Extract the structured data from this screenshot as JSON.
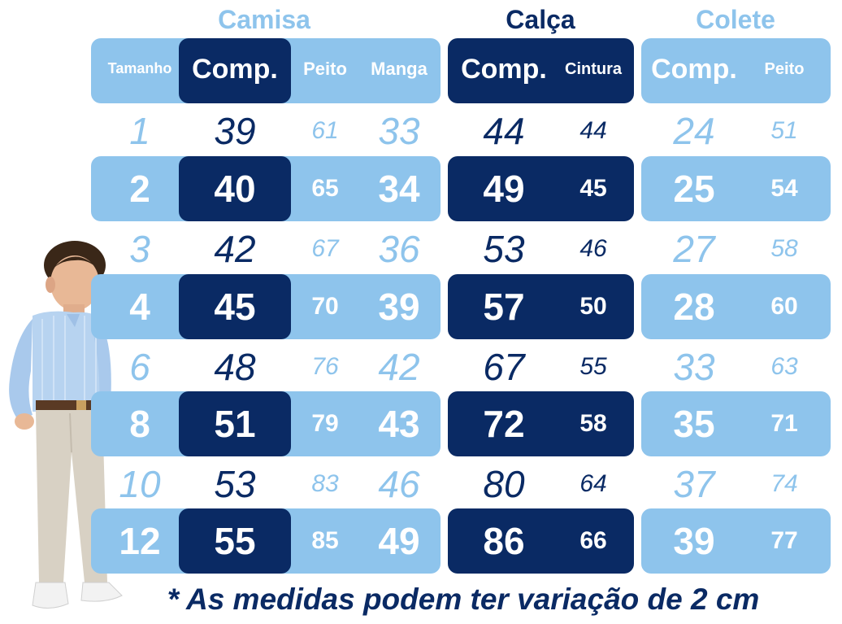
{
  "groups": {
    "camisa": "Camisa",
    "calca": "Calça",
    "colete": "Colete"
  },
  "headers": {
    "tamanho": "Tamanho",
    "camisa_comp": "Comp.",
    "camisa_peito": "Peito",
    "camisa_manga": "Manga",
    "calca_comp": "Comp.",
    "calca_cintura": "Cintura",
    "colete_comp": "Comp.",
    "colete_peito": "Peito"
  },
  "rows": [
    {
      "tamanho": "1",
      "camisa_comp": "39",
      "camisa_peito": "61",
      "camisa_manga": "33",
      "calca_comp": "44",
      "calca_cintura": "44",
      "colete_comp": "24",
      "colete_peito": "51"
    },
    {
      "tamanho": "2",
      "camisa_comp": "40",
      "camisa_peito": "65",
      "camisa_manga": "34",
      "calca_comp": "49",
      "calca_cintura": "45",
      "colete_comp": "25",
      "colete_peito": "54"
    },
    {
      "tamanho": "3",
      "camisa_comp": "42",
      "camisa_peito": "67",
      "camisa_manga": "36",
      "calca_comp": "53",
      "calca_cintura": "46",
      "colete_comp": "27",
      "colete_peito": "58"
    },
    {
      "tamanho": "4",
      "camisa_comp": "45",
      "camisa_peito": "70",
      "camisa_manga": "39",
      "calca_comp": "57",
      "calca_cintura": "50",
      "colete_comp": "28",
      "colete_peito": "60"
    },
    {
      "tamanho": "6",
      "camisa_comp": "48",
      "camisa_peito": "76",
      "camisa_manga": "42",
      "calca_comp": "67",
      "calca_cintura": "55",
      "colete_comp": "33",
      "colete_peito": "63"
    },
    {
      "tamanho": "8",
      "camisa_comp": "51",
      "camisa_peito": "79",
      "camisa_manga": "43",
      "calca_comp": "72",
      "calca_cintura": "58",
      "colete_comp": "35",
      "colete_peito": "71"
    },
    {
      "tamanho": "10",
      "camisa_comp": "53",
      "camisa_peito": "83",
      "camisa_manga": "46",
      "calca_comp": "80",
      "calca_cintura": "64",
      "colete_comp": "37",
      "colete_peito": "74"
    },
    {
      "tamanho": "12",
      "camisa_comp": "55",
      "camisa_peito": "85",
      "camisa_manga": "49",
      "calca_comp": "86",
      "calca_cintura": "66",
      "colete_comp": "39",
      "colete_peito": "77"
    }
  ],
  "footnote": "* As medidas podem ter variação de 2 cm",
  "colors": {
    "light_blue": "#8ec4ec",
    "navy": "#0a2a64",
    "white": "#ffffff"
  },
  "illustration": "boy-in-shirt-and-trousers"
}
